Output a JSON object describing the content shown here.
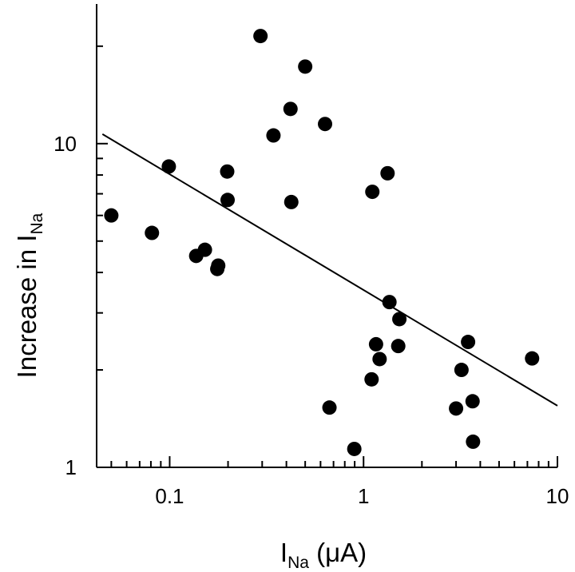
{
  "chart_data": {
    "type": "scatter",
    "xlabel": {
      "main": "I",
      "sub": "Na",
      "rest": " (μA)"
    },
    "ylabel": {
      "main": "Increase in I",
      "sub": "Na"
    },
    "x_scale": "log",
    "y_scale": "log",
    "xlim": [
      0.042,
      10
    ],
    "ylim": [
      1,
      27
    ],
    "x_ticks": [
      {
        "value": 0.1,
        "label": "0.1"
      },
      {
        "value": 1,
        "label": "1"
      },
      {
        "value": 10,
        "label": "10"
      }
    ],
    "y_ticks": [
      {
        "value": 1,
        "label": "1"
      },
      {
        "value": 10,
        "label": "10"
      }
    ],
    "grid": false,
    "legend": "none",
    "marker_color": "#000000",
    "series": [
      {
        "points": [
          {
            "x": 0.05,
            "y": 6.0
          },
          {
            "x": 0.081,
            "y": 5.3
          },
          {
            "x": 0.099,
            "y": 8.5
          },
          {
            "x": 0.137,
            "y": 4.5
          },
          {
            "x": 0.152,
            "y": 4.7
          },
          {
            "x": 0.176,
            "y": 4.1
          },
          {
            "x": 0.178,
            "y": 4.2
          },
          {
            "x": 0.198,
            "y": 8.2
          },
          {
            "x": 0.199,
            "y": 6.7
          },
          {
            "x": 0.294,
            "y": 21.5
          },
          {
            "x": 0.343,
            "y": 10.6
          },
          {
            "x": 0.42,
            "y": 12.8
          },
          {
            "x": 0.424,
            "y": 6.6
          },
          {
            "x": 0.5,
            "y": 17.3
          },
          {
            "x": 0.633,
            "y": 11.5
          },
          {
            "x": 0.667,
            "y": 1.53
          },
          {
            "x": 0.896,
            "y": 1.14
          },
          {
            "x": 1.1,
            "y": 1.87
          },
          {
            "x": 1.11,
            "y": 7.1
          },
          {
            "x": 1.16,
            "y": 2.4
          },
          {
            "x": 1.21,
            "y": 2.16
          },
          {
            "x": 1.33,
            "y": 8.1
          },
          {
            "x": 1.36,
            "y": 3.24
          },
          {
            "x": 1.51,
            "y": 2.37
          },
          {
            "x": 1.53,
            "y": 2.87
          },
          {
            "x": 3.0,
            "y": 1.52
          },
          {
            "x": 3.2,
            "y": 2.0
          },
          {
            "x": 3.46,
            "y": 2.44
          },
          {
            "x": 3.65,
            "y": 1.6
          },
          {
            "x": 3.67,
            "y": 1.2
          },
          {
            "x": 7.4,
            "y": 2.17
          }
        ]
      }
    ],
    "fit_line": {
      "x": [
        0.045,
        10
      ],
      "y": [
        10.7,
        1.55
      ]
    }
  }
}
